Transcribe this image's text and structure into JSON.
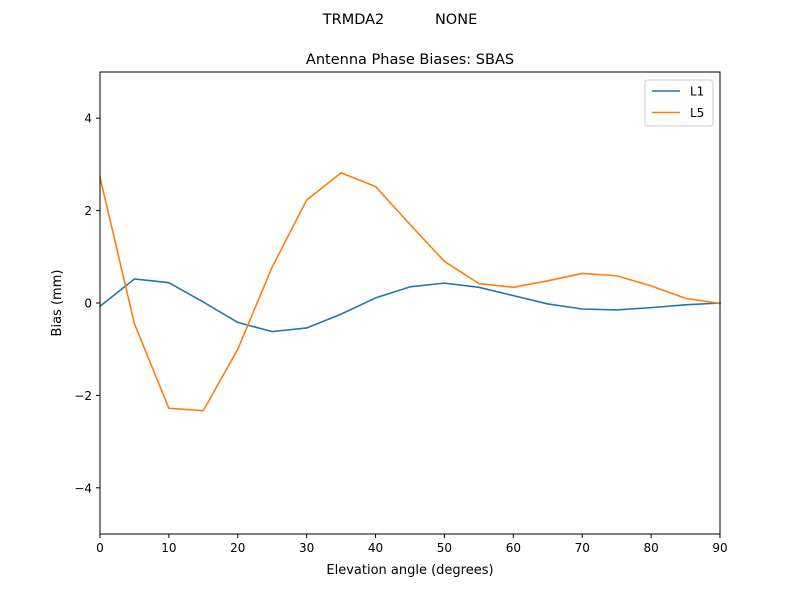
{
  "figure": {
    "suptitle": "TRMDA2           NONE"
  },
  "chart_data": {
    "type": "line",
    "title": "Antenna Phase Biases: SBAS",
    "xlabel": "Elevation angle (degrees)",
    "ylabel": "Bias (mm)",
    "xlim": [
      0,
      90
    ],
    "ylim": [
      -5,
      5
    ],
    "xticks": [
      0,
      10,
      20,
      30,
      40,
      50,
      60,
      70,
      80,
      90
    ],
    "yticks": [
      -4,
      -2,
      0,
      2,
      4
    ],
    "xtick_labels": [
      "0",
      "10",
      "20",
      "30",
      "40",
      "50",
      "60",
      "70",
      "80",
      "90"
    ],
    "ytick_labels": [
      "−4",
      "−2",
      "0",
      "2",
      "4"
    ],
    "grid": false,
    "legend_position": "upper right",
    "x": [
      0,
      5,
      10,
      15,
      20,
      25,
      30,
      35,
      40,
      45,
      50,
      55,
      60,
      65,
      70,
      75,
      80,
      85,
      90
    ],
    "series": [
      {
        "name": "L1",
        "color": "#1f77b4",
        "values": [
          -0.07,
          0.52,
          0.44,
          0.02,
          -0.42,
          -0.62,
          -0.54,
          -0.24,
          0.11,
          0.35,
          0.43,
          0.34,
          0.16,
          -0.02,
          -0.13,
          -0.15,
          -0.1,
          -0.04,
          0.0
        ]
      },
      {
        "name": "L5",
        "color": "#ff7f0e",
        "values": [
          2.72,
          -0.45,
          -2.28,
          -2.33,
          -1.0,
          0.78,
          2.23,
          2.82,
          2.52,
          1.7,
          0.9,
          0.42,
          0.34,
          0.48,
          0.64,
          0.59,
          0.37,
          0.1,
          -0.01
        ]
      }
    ]
  }
}
